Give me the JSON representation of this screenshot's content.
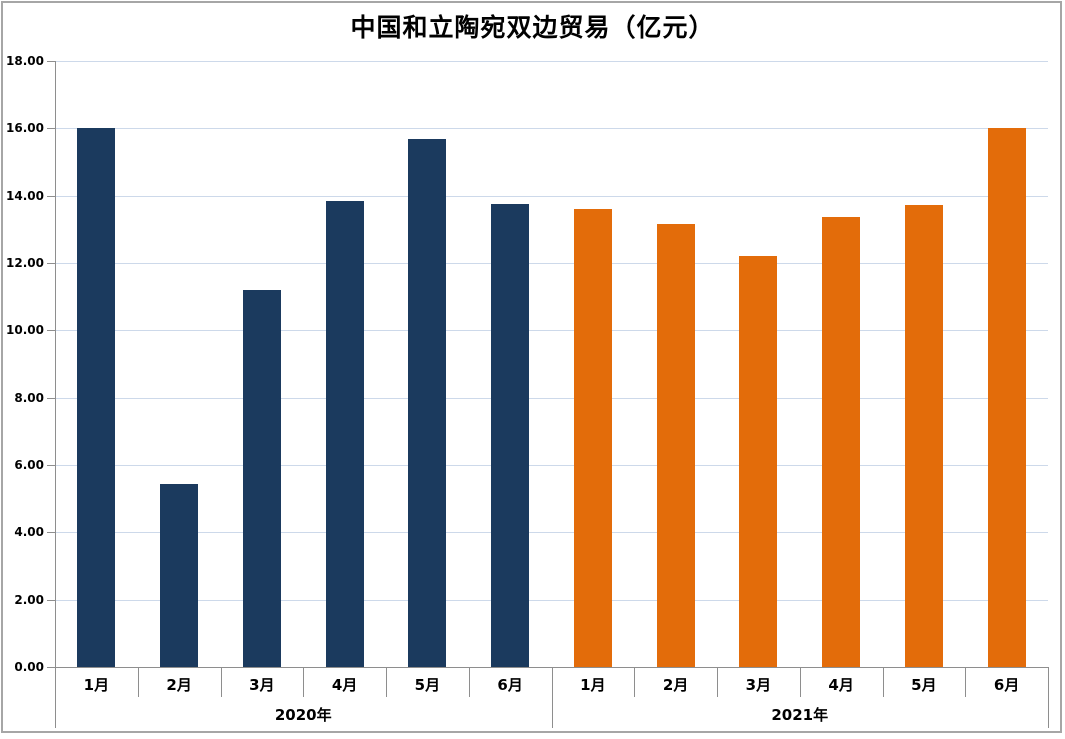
{
  "chart_data": {
    "type": "bar",
    "title": "中国和立陶宛双边贸易（亿元）",
    "xlabel": "",
    "ylabel": "",
    "ylim": [
      0,
      18
    ],
    "ytick_step": 2,
    "ytick_labels": [
      "0.00",
      "2.00",
      "4.00",
      "6.00",
      "8.00",
      "10.00",
      "12.00",
      "14.00",
      "16.00",
      "18.00"
    ],
    "grid": true,
    "legend_position": "none",
    "categories": [
      "1月",
      "2月",
      "3月",
      "4月",
      "5月",
      "6月"
    ],
    "series": [
      {
        "name": "2020年",
        "color": "#1b3a5e",
        "values": [
          16.0,
          5.45,
          11.2,
          13.85,
          15.68,
          13.75
        ]
      },
      {
        "name": "2021年",
        "color": "#e36c0a",
        "values": [
          13.6,
          13.15,
          12.2,
          13.38,
          13.72,
          16.0
        ]
      }
    ],
    "group_labels": [
      "2020年",
      "2021年"
    ]
  },
  "colors": {
    "grid": "#cdd9ea",
    "axis": "#8e8e8e",
    "border": "#a6a6a6",
    "bar_2020": "#1b3a5e",
    "bar_2021": "#e36c0a",
    "text": "#000000"
  }
}
